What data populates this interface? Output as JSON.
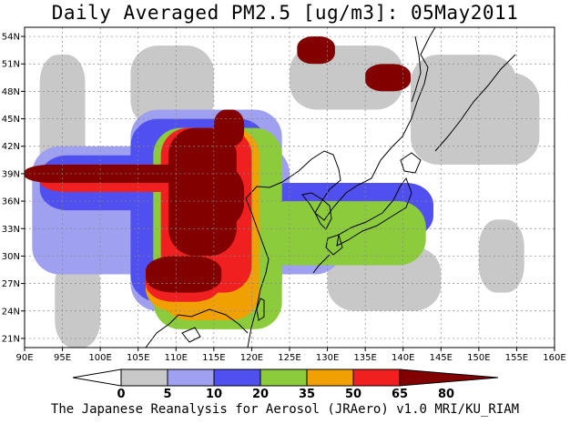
{
  "title": "Daily Averaged PM2.5 [ug/m3]: 05May2011",
  "footer": "The Japanese Reanalysis for Aerosol (JRAero) v1.0 MRI/KU_RIAM",
  "chart_data": {
    "type": "heatmap",
    "title": "Daily Averaged PM2.5 [ug/m3]: 05May2011",
    "lon_range": [
      90,
      160
    ],
    "lat_range": [
      20,
      55
    ],
    "x_ticks": [
      "90E",
      "95E",
      "100E",
      "105E",
      "110E",
      "115E",
      "120E",
      "125E",
      "130E",
      "135E",
      "140E",
      "145E",
      "150E",
      "155E",
      "160E"
    ],
    "y_ticks": [
      "21N",
      "24N",
      "27N",
      "30N",
      "33N",
      "36N",
      "39N",
      "42N",
      "45N",
      "48N",
      "51N",
      "54N"
    ],
    "grid": true,
    "colorbar": {
      "levels": [
        "0",
        "5",
        "10",
        "20",
        "35",
        "50",
        "65",
        "80"
      ],
      "colors": [
        "#ffffff",
        "#c8c8c8",
        "#a0a0f0",
        "#5050f0",
        "#8ccc3c",
        "#f0a000",
        "#f02020",
        "#820000"
      ]
    },
    "regions": [
      {
        "level": 5,
        "lon": [
          [
            92,
            98
          ],
          [
            97,
            98
          ],
          [
            104,
            115
          ],
          [
            125,
            140
          ],
          [
            141,
            155
          ],
          [
            150,
            156
          ],
          [
            94,
            100
          ],
          [
            130,
            145
          ],
          [
            147,
            158
          ]
        ],
        "lat": [
          [
            30,
            52
          ],
          [
            33,
            48
          ],
          [
            44,
            53
          ],
          [
            46,
            53
          ],
          [
            40,
            52
          ],
          [
            26,
            34
          ],
          [
            20,
            30
          ],
          [
            24,
            31
          ],
          [
            40,
            50
          ]
        ]
      },
      {
        "level": 10,
        "lon": [
          [
            91,
            125
          ],
          [
            104,
            124
          ],
          [
            105,
            132
          ]
        ],
        "lat": [
          [
            28,
            42
          ],
          [
            24,
            46
          ],
          [
            28,
            38
          ]
        ]
      },
      {
        "level": 20,
        "lon": [
          [
            92,
            122
          ],
          [
            104,
            122
          ],
          [
            121,
            144
          ]
        ],
        "lat": [
          [
            35,
            41
          ],
          [
            25,
            45
          ],
          [
            32,
            38
          ]
        ]
      },
      {
        "level": 35,
        "lon": [
          [
            107,
            124
          ],
          [
            121,
            143
          ]
        ],
        "lat": [
          [
            22,
            44
          ],
          [
            29,
            36
          ]
        ]
      },
      {
        "level": 50,
        "lon": [
          [
            108,
            121
          ],
          [
            106,
            118
          ]
        ],
        "lat": [
          [
            23,
            44
          ],
          [
            24,
            30
          ]
        ]
      },
      {
        "level": 65,
        "lon": [
          [
            92,
            118
          ],
          [
            108,
            120
          ],
          [
            106,
            116
          ]
        ],
        "lat": [
          [
            37,
            40
          ],
          [
            26,
            44
          ],
          [
            25,
            30
          ]
        ]
      },
      {
        "level": 80,
        "lon": [
          [
            90,
            118
          ],
          [
            109,
            118
          ],
          [
            111,
            119
          ],
          [
            106,
            116
          ],
          [
            115,
            119
          ],
          [
            126,
            131
          ],
          [
            135,
            141
          ]
        ],
        "lat": [
          [
            38,
            40
          ],
          [
            30,
            44
          ],
          [
            33,
            40
          ],
          [
            26,
            30
          ],
          [
            42,
            46
          ],
          [
            51,
            54
          ],
          [
            48,
            51
          ]
        ]
      }
    ]
  }
}
